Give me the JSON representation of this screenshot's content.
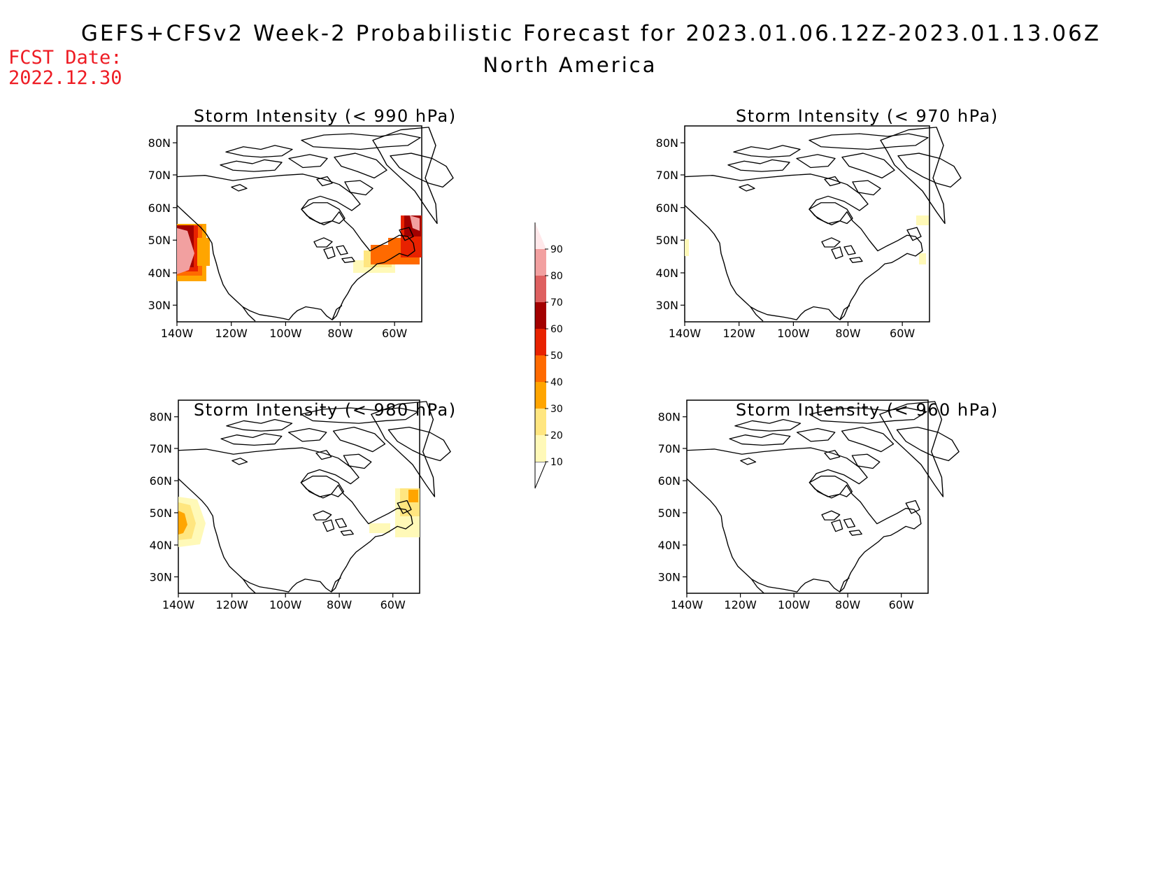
{
  "title": {
    "line1": "GEFS+CFSv2 Week-2 Probabilistic Forecast for 2023.01.06.12Z-2023.01.13.06Z",
    "line2": "North America"
  },
  "forecast_date": {
    "label": "FCST Date:",
    "value": "2022.12.30"
  },
  "panels": [
    {
      "id": "p990",
      "title": "Storm Intensity (< 990 hPa)"
    },
    {
      "id": "p970",
      "title": "Storm Intensity (< 970 hPa)"
    },
    {
      "id": "p980",
      "title": "Storm Intensity (< 980 hPa)"
    },
    {
      "id": "p960",
      "title": "Storm Intensity (< 960 hPa)"
    }
  ],
  "axes": {
    "lon_labels": [
      "140W",
      "120W",
      "100W",
      "80W",
      "60W"
    ],
    "lat_labels": [
      "80N",
      "70N",
      "60N",
      "50N",
      "40N",
      "30N"
    ]
  },
  "colorbar": {
    "levels": [
      "10",
      "20",
      "30",
      "40",
      "50",
      "60",
      "70",
      "80",
      "90"
    ],
    "colors": [
      "#fff9b8",
      "#ffe680",
      "#ffa500",
      "#ff6a00",
      "#e82200",
      "#a30000",
      "#de6060",
      "#f2a0a0",
      "#ffe8ea"
    ]
  }
}
